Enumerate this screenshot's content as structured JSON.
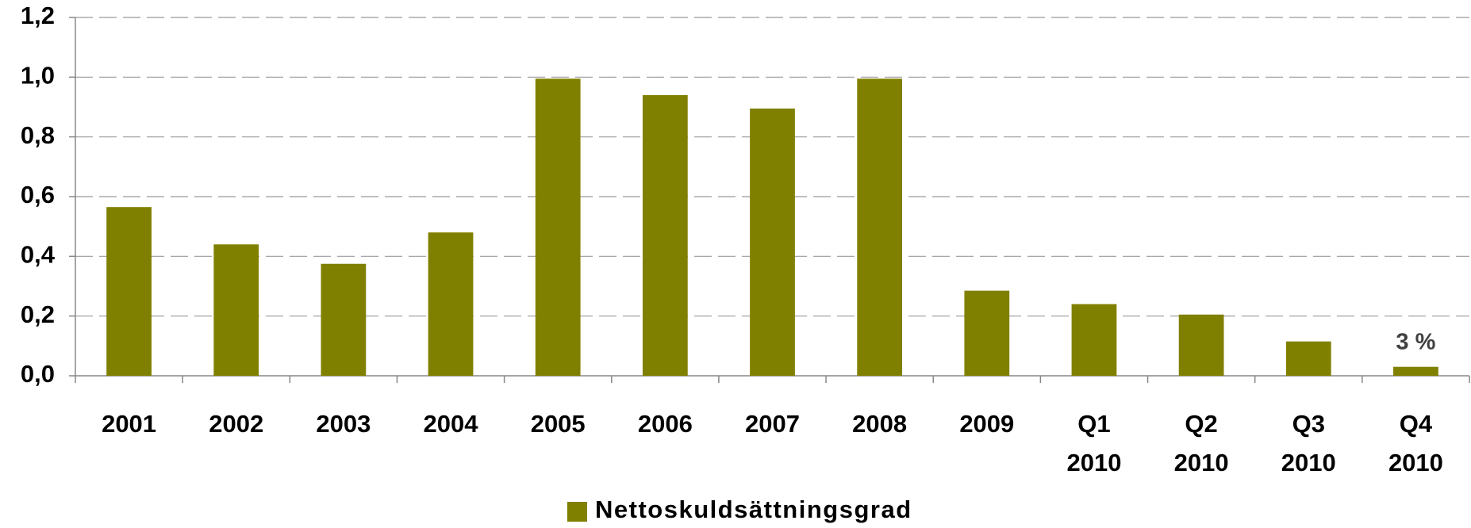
{
  "chart_data": {
    "type": "bar",
    "categories": [
      "2001",
      "2002",
      "2003",
      "2004",
      "2005",
      "2006",
      "2007",
      "2008",
      "2009",
      "Q1 2010",
      "Q2 2010",
      "Q3 2010",
      "Q4 2010"
    ],
    "series": [
      {
        "name": "Nettoskuldsättningsgrad",
        "color": "#808000",
        "values": [
          0.565,
          0.44,
          0.375,
          0.48,
          0.995,
          0.94,
          0.895,
          0.995,
          0.285,
          0.24,
          0.205,
          0.115,
          0.03
        ],
        "value_labels": [
          null,
          null,
          null,
          null,
          null,
          null,
          null,
          null,
          null,
          null,
          null,
          null,
          "3 %"
        ]
      }
    ],
    "ylim": [
      0,
      1.2
    ],
    "yticks": [
      {
        "value": 0,
        "label": "0,0"
      },
      {
        "value": 0.2,
        "label": "0,2"
      },
      {
        "value": 0.4,
        "label": "0,4"
      },
      {
        "value": 0.6,
        "label": "0,6"
      },
      {
        "value": 0.8,
        "label": "0,8"
      },
      {
        "value": 1.0,
        "label": "1,0"
      },
      {
        "value": 1.2,
        "label": "1,2"
      }
    ],
    "grid": true,
    "legend": "bottom"
  }
}
